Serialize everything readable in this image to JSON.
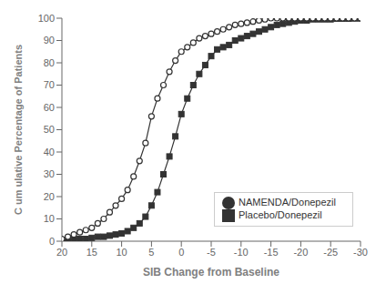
{
  "chart_data": {
    "type": "line",
    "xlabel": "SIB Change from Baseline",
    "ylabel": "C um ulative Percentage of Patients",
    "xlim": [
      20,
      -30
    ],
    "ylim": [
      0,
      100
    ],
    "xticks": [
      20,
      15,
      10,
      5,
      0,
      -5,
      -10,
      -15,
      -20,
      -25,
      -30
    ],
    "yticks": [
      0,
      10,
      20,
      30,
      40,
      50,
      60,
      70,
      80,
      90,
      100
    ],
    "x": [
      20,
      19,
      18,
      17,
      16,
      15,
      14,
      13,
      12,
      11,
      10,
      9,
      8,
      7,
      6,
      5,
      4,
      3,
      2,
      1,
      0,
      -1,
      -2,
      -3,
      -4,
      -5,
      -6,
      -7,
      -8,
      -9,
      -10,
      -11,
      -12,
      -13,
      -14,
      -15,
      -16,
      -17,
      -18,
      -19,
      -20,
      -21,
      -22,
      -23,
      -24,
      -25,
      -26,
      -27,
      -28,
      -29,
      -30
    ],
    "series": [
      {
        "name": "Placebo/Donepezil",
        "color": "#333333",
        "marker": "square",
        "values": [
          0.5,
          0.5,
          1,
          1,
          1,
          1.5,
          2,
          2,
          2.5,
          3,
          3.5,
          4.5,
          6,
          8,
          11,
          16,
          22,
          30,
          38,
          47,
          57,
          64,
          70,
          75,
          79,
          83,
          86,
          87,
          88,
          90,
          91,
          92,
          93,
          94,
          95,
          96,
          97,
          97.5,
          98,
          98.5,
          99,
          99,
          99.5,
          99.5,
          99.5,
          99.5,
          99.8,
          99.8,
          99.8,
          99.9,
          99.9
        ]
      },
      {
        "name": "NAMENDA/Donepezil",
        "color": "#333333",
        "marker": "circle",
        "values": [
          1,
          2,
          3,
          4,
          5,
          6,
          8,
          10,
          13,
          16,
          19,
          23,
          29,
          36,
          44,
          56,
          64,
          70,
          76,
          81,
          85,
          87,
          89,
          91,
          92,
          93,
          94,
          95,
          96,
          97,
          97.5,
          98,
          98.5,
          99,
          99.5,
          100,
          100,
          100,
          100,
          100,
          100,
          100,
          100,
          100,
          100,
          100,
          100,
          100,
          100,
          100,
          100
        ]
      }
    ],
    "legend": "lower right",
    "grid": false
  }
}
